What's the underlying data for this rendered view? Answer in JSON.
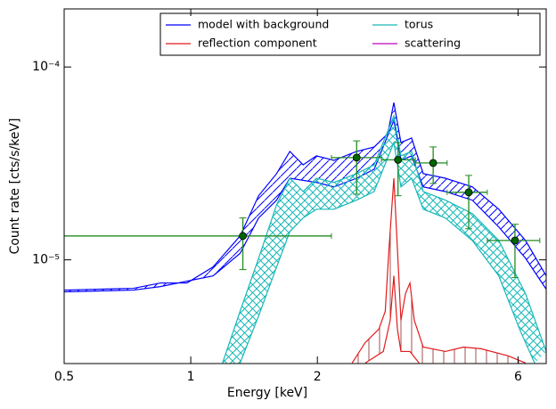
{
  "chart_data": {
    "type": "spectrum",
    "xlabel": "Energy [keV]",
    "ylabel": "Count rate [cts/s/keV]",
    "xscale": "log",
    "yscale": "log",
    "xlim": [
      0.5,
      7.0
    ],
    "ylim": [
      2.9e-06,
      0.0002
    ],
    "xticks": [
      0.5,
      1,
      2,
      6
    ],
    "yticks": [
      {
        "value": 1e-05,
        "label": "10⁻⁵"
      },
      {
        "value": 0.0001,
        "label": "10⁻⁴"
      }
    ],
    "legend": "upper right",
    "series": [
      {
        "name": "model with background",
        "color": "#0000ff",
        "hatch": "diagonal",
        "upper": {
          "x": [
            0.5,
            0.731,
            0.847,
            0.98,
            1.13,
            1.31,
            1.45,
            1.6,
            1.72,
            1.85,
            1.99,
            2.19,
            2.48,
            2.73,
            2.94,
            3.04,
            3.16,
            3.35,
            3.57,
            4.03,
            4.67,
            5.4,
            6.25,
            7.0
          ],
          "values": [
            6.97e-06,
            7.12e-06,
            7.59e-06,
            7.59e-06,
            9.19e-06,
            1.33e-05,
            2.15e-05,
            2.8e-05,
            3.65e-05,
            3.11e-05,
            3.46e-05,
            3.28e-05,
            3.65e-05,
            3.85e-05,
            4.51e-05,
            6.54e-05,
            4.06e-05,
            4.28e-05,
            2.8e-05,
            2.65e-05,
            2.39e-05,
            1.83e-05,
            1.26e-05,
            8.26e-06
          ]
        },
        "lower": {
          "x": [
            0.5,
            0.731,
            0.847,
            1.13,
            1.31,
            1.45,
            1.6,
            1.72,
            1.99,
            2.19,
            2.48,
            2.73,
            3.04,
            3.16,
            3.35,
            3.57,
            4.03,
            4.67,
            5.4,
            6.25,
            7.0
          ],
          "values": [
            6.83e-06,
            6.97e-06,
            7.27e-06,
            8.26e-06,
            1.08e-05,
            1.65e-05,
            2.04e-05,
            2.65e-05,
            2.52e-05,
            2.39e-05,
            2.65e-05,
            2.95e-05,
            5.29e-05,
            3.28e-05,
            3.46e-05,
            2.39e-05,
            2.26e-05,
            2.04e-05,
            1.48e-05,
            1.02e-05,
            7.05e-06
          ]
        }
      },
      {
        "name": "torus",
        "color": "#17b8b8",
        "hatch": "cross",
        "upper": {
          "x": [
            1.19,
            1.31,
            1.45,
            1.6,
            1.72,
            1.85,
            1.99,
            2.19,
            2.48,
            2.73,
            3.04,
            3.16,
            3.35,
            3.57,
            4.03,
            4.67,
            5.4,
            6.25,
            7.0
          ],
          "values": [
            2.92e-06,
            5.41e-06,
            1.02e-05,
            1.93e-05,
            2.65e-05,
            2.26e-05,
            2.65e-05,
            2.52e-05,
            2.8e-05,
            3.11e-05,
            5.58e-05,
            3.46e-05,
            3.65e-05,
            2.26e-05,
            2.04e-05,
            1.74e-05,
            1.26e-05,
            6.68e-06,
            3.35e-06
          ]
        },
        "lower": {
          "x": [
            1.31,
            1.45,
            1.6,
            1.72,
            1.85,
            1.99,
            2.19,
            2.48,
            2.73,
            3.04,
            3.16,
            3.35,
            3.57,
            4.03,
            4.67,
            5.4,
            6.05,
            6.57
          ],
          "values": [
            2.92e-06,
            5.12e-06,
            9.19e-06,
            1.4e-05,
            1.65e-05,
            1.83e-05,
            1.83e-05,
            2.04e-05,
            2.26e-05,
            4.06e-05,
            2.39e-05,
            2.65e-05,
            1.83e-05,
            1.65e-05,
            1.26e-05,
            8.26e-06,
            4.37e-06,
            2.92e-06
          ]
        }
      },
      {
        "name": "reflection component",
        "color": "#e31a1c",
        "hatch": "vertical",
        "hatch_color": "#a05050",
        "upper": {
          "x": [
            2.42,
            2.6,
            2.8,
            2.9,
            2.96,
            3.04,
            3.1,
            3.16,
            3.24,
            3.32,
            3.4,
            3.57,
            4.03,
            4.45,
            4.9,
            5.68,
            6.25
          ],
          "values": [
            2.92e-06,
            3.73e-06,
            4.37e-06,
            5.41e-06,
            1.14e-05,
            2.65e-05,
            1.14e-05,
            4.86e-06,
            6.68e-06,
            7.59e-06,
            4.86e-06,
            3.53e-06,
            3.35e-06,
            3.53e-06,
            3.46e-06,
            3.18e-06,
            2.92e-06
          ]
        },
        "lower": {
          "x": [
            2.6,
            2.87,
            2.98,
            3.04,
            3.1,
            3.16,
            3.32,
            3.49
          ],
          "values": [
            2.92e-06,
            3.35e-06,
            4.86e-06,
            8.26e-06,
            4.37e-06,
            3.35e-06,
            3.35e-06,
            2.92e-06
          ]
        }
      },
      {
        "name": "scattering",
        "color": "#bf00bf"
      }
    ],
    "points": {
      "color": "#228b22",
      "marker_color": "#006400",
      "x": [
        1.33,
        2.48,
        3.11,
        3.77,
        4.58,
        5.9
      ],
      "values": [
        1.33e-05,
        3.39e-05,
        3.3e-05,
        3.18e-05,
        2.24e-05,
        1.26e-05
      ],
      "x_low": [
        0.5,
        2.16,
        2.84,
        3.42,
        4.07,
        5.07
      ],
      "x_high": [
        2.16,
        2.84,
        3.42,
        4.07,
        5.07,
        6.76
      ],
      "y_low": [
        8.9e-06,
        2.19e-05,
        2.15e-05,
        2.49e-05,
        1.45e-05,
        8.1e-06
      ],
      "y_high": [
        1.65e-05,
        4.14e-05,
        4.05e-05,
        3.85e-05,
        2.74e-05,
        1.53e-05
      ]
    }
  }
}
